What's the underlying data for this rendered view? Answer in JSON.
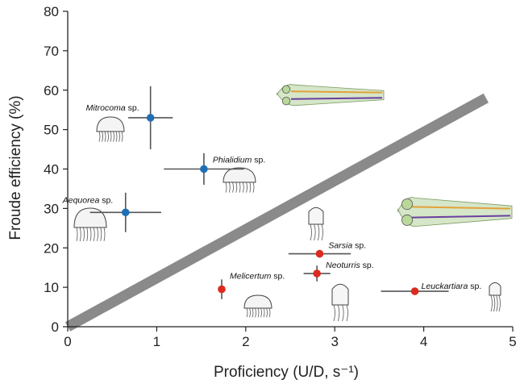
{
  "chart_data": {
    "type": "scatter",
    "title": "",
    "xlabel": "Proficiency (U/D, s⁻¹)",
    "ylabel": "Froude efficiency (%)",
    "xlim": [
      0,
      5
    ],
    "ylim": [
      0,
      80
    ],
    "xticks": [
      "0",
      "1",
      "2",
      "3",
      "4",
      "5"
    ],
    "yticks": [
      "0",
      "10",
      "20",
      "30",
      "40",
      "50",
      "60",
      "70",
      "80"
    ],
    "grid": false,
    "legend": "none",
    "trend_line": {
      "x": [
        0,
        4.7
      ],
      "y": [
        0,
        58
      ]
    },
    "colors": {
      "blue_group": "#1f6fb5",
      "red_group": "#dd2a1e",
      "error_bar": "#555555",
      "trend_line": "#8a8a8a"
    },
    "series": [
      {
        "color": "blue",
        "points": [
          {
            "genus": "Mitrocoma",
            "suffix": " sp.",
            "x": 0.93,
            "y": 53,
            "x_err": 0.25,
            "y_err": 8
          },
          {
            "genus": "Phialidium",
            "suffix": " sp.",
            "x": 1.53,
            "y": 40,
            "x_err": 0.45,
            "y_err": 4
          },
          {
            "genus": "Aequorea",
            "suffix": " sp.",
            "x": 0.65,
            "y": 29,
            "x_err": 0.4,
            "y_err": 5
          }
        ]
      },
      {
        "color": "red",
        "points": [
          {
            "genus": "Sarsia",
            "suffix": " sp.",
            "x": 2.83,
            "y": 18.5,
            "x_err": 0.35,
            "y_err": 1
          },
          {
            "genus": "Neoturris",
            "suffix": " sp.",
            "x": 2.8,
            "y": 13.5,
            "x_err": 0.15,
            "y_err": 2
          },
          {
            "genus": "Melicertum",
            "suffix": " sp.",
            "x": 1.73,
            "y": 9.5,
            "x_err": 0,
            "y_err": 2.5
          },
          {
            "genus": "Leuckartiara",
            "suffix": " sp.",
            "x": 3.9,
            "y": 9,
            "x_err": 0.38,
            "y_err": 0
          }
        ]
      }
    ]
  }
}
